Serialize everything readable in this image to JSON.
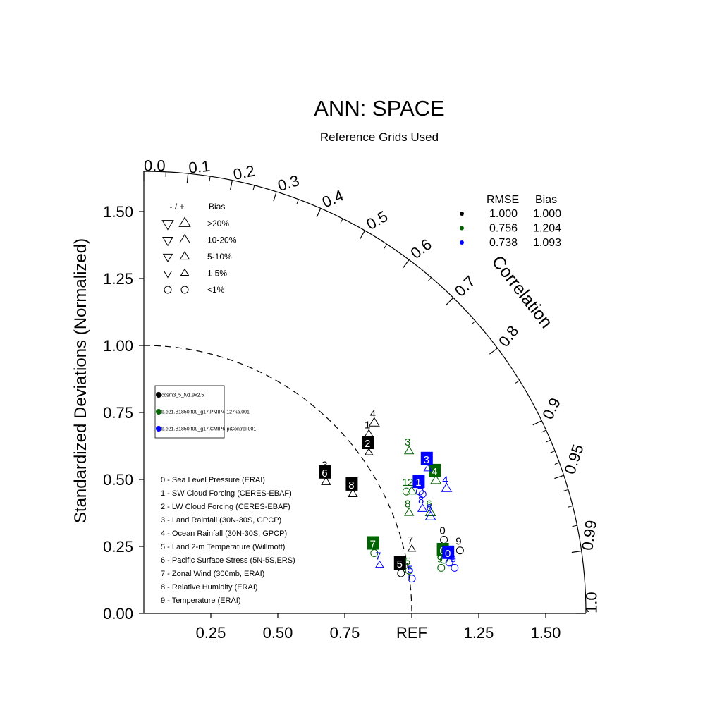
{
  "chart_data": {
    "type": "scatter",
    "subtype": "taylor-diagram",
    "title": "ANN: SPACE",
    "subtitle": "Reference Grids Used",
    "ylabel": "Standardized Deviations (Normalized)",
    "arc_label": "Correlation",
    "ref_label": "REF",
    "std_max": 1.65,
    "std_ref": 1.0,
    "y_ticks": [
      "0.00",
      "0.25",
      "0.50",
      "0.75",
      "1.00",
      "1.25",
      "1.50"
    ],
    "y_tick_values": [
      0,
      0.25,
      0.5,
      0.75,
      1.0,
      1.25,
      1.5
    ],
    "x_ticks": [
      "0.25",
      "0.50",
      "0.75",
      "1.25",
      "1.50"
    ],
    "x_tick_values": [
      0.25,
      0.5,
      0.75,
      1.25,
      1.5
    ],
    "corr_labels": [
      "0.0",
      "0.1",
      "0.2",
      "0.3",
      "0.4",
      "0.5",
      "0.6",
      "0.7",
      "0.8",
      "0.9",
      "0.95",
      "0.99",
      "1.0"
    ],
    "corr_values": [
      0.0,
      0.1,
      0.2,
      0.3,
      0.4,
      0.5,
      0.6,
      0.7,
      0.8,
      0.9,
      0.95,
      0.99,
      1.0
    ],
    "bias_legend": {
      "header_sign": "- / +",
      "header_bias": "Bias",
      "rows": [
        {
          "label": ">20%",
          "size": 1.0
        },
        {
          "label": "10-20%",
          "size": 0.85
        },
        {
          "label": "5-10%",
          "size": 0.7
        },
        {
          "label": "1-5%",
          "size": 0.5
        },
        {
          "label": "<1%",
          "size": 0.0
        }
      ]
    },
    "stats": {
      "header_rmse": "RMSE",
      "header_bias": "Bias",
      "rows": [
        {
          "color": "#000000",
          "rmse": "1.000",
          "bias": "1.000"
        },
        {
          "color": "#006400",
          "rmse": "0.756",
          "bias": "1.204"
        },
        {
          "color": "#0000ff",
          "rmse": "0.738",
          "bias": "1.093"
        }
      ]
    },
    "cases": [
      {
        "name": "ccsm3_5_fv1.9x2.5",
        "color": "#000000"
      },
      {
        "name": "b.e21.B1850.f09_g17.PMIP4-127ka.001",
        "color": "#006400"
      },
      {
        "name": "b.e21.B1850.f09_g17.CMIP6-piControl.001",
        "color": "#0000ff"
      }
    ],
    "variables": [
      "0 - Sea Level Pressure (ERAI)",
      "1 - SW Cloud Forcing (CERES-EBAF)",
      "2 - LW Cloud Forcing (CERES-EBAF)",
      "3 - Land Rainfall (30N-30S, GPCP)",
      "4 - Ocean Rainfall (30N-30S, GPCP)",
      "5 - Land 2-m Temperature (Willmott)",
      "6 - Pacific Surface Stress (5N-5S,ERS)",
      "7 - Zonal Wind (300mb, ERAI)",
      "8 - Relative Humidity (ERAI)",
      "9 - Temperature (ERAI)"
    ],
    "points": [
      {
        "case": 0,
        "label": "0",
        "x": 1.12,
        "y": 0.275,
        "marker": "circle",
        "size": 0.0,
        "boxed": false
      },
      {
        "case": 0,
        "label": "1",
        "x": 0.84,
        "y": 0.67,
        "marker": "up",
        "size": 0.5,
        "boxed": false
      },
      {
        "case": 0,
        "label": "2",
        "x": 0.84,
        "y": 0.6,
        "marker": "up",
        "size": 0.5,
        "boxed": true
      },
      {
        "case": 0,
        "label": "3",
        "x": 0.68,
        "y": 0.52,
        "marker": "up",
        "size": 0.5,
        "boxed": false
      },
      {
        "case": 0,
        "label": "4",
        "x": 0.86,
        "y": 0.71,
        "marker": "up",
        "size": 0.85,
        "boxed": false
      },
      {
        "case": 0,
        "label": "5",
        "x": 0.96,
        "y": 0.15,
        "marker": "circle",
        "size": 0.0,
        "boxed": true
      },
      {
        "case": 0,
        "label": "6",
        "x": 0.68,
        "y": 0.49,
        "marker": "up",
        "size": 0.7,
        "boxed": true
      },
      {
        "case": 0,
        "label": "7",
        "x": 1.0,
        "y": 0.24,
        "marker": "up",
        "size": 0.5,
        "boxed": false
      },
      {
        "case": 0,
        "label": "8",
        "x": 0.78,
        "y": 0.445,
        "marker": "up",
        "size": 0.7,
        "boxed": true
      },
      {
        "case": 0,
        "label": "9",
        "x": 1.18,
        "y": 0.235,
        "marker": "circle",
        "size": 0.0,
        "boxed": false
      },
      {
        "case": 1,
        "label": "0",
        "x": 1.12,
        "y": 0.2,
        "marker": "circle",
        "size": 0.0,
        "boxed": true
      },
      {
        "case": 1,
        "label": "1",
        "x": 0.98,
        "y": 0.455,
        "marker": "circle",
        "size": 0.0,
        "boxed": false
      },
      {
        "case": 1,
        "label": "2",
        "x": 1.0,
        "y": 0.455,
        "marker": "up",
        "size": 0.7,
        "boxed": false
      },
      {
        "case": 1,
        "label": "3",
        "x": 0.99,
        "y": 0.605,
        "marker": "up",
        "size": 0.7,
        "boxed": false
      },
      {
        "case": 1,
        "label": "4",
        "x": 1.09,
        "y": 0.495,
        "marker": "up",
        "size": 0.85,
        "boxed": true
      },
      {
        "case": 1,
        "label": "5",
        "x": 0.99,
        "y": 0.16,
        "marker": "circle",
        "size": 0.0,
        "boxed": false
      },
      {
        "case": 1,
        "label": "6",
        "x": 1.07,
        "y": 0.375,
        "marker": "up",
        "size": 0.85,
        "boxed": false
      },
      {
        "case": 1,
        "label": "7",
        "x": 0.86,
        "y": 0.225,
        "marker": "circle",
        "size": 0.0,
        "boxed": true
      },
      {
        "case": 1,
        "label": "8",
        "x": 0.99,
        "y": 0.375,
        "marker": "up",
        "size": 0.7,
        "boxed": false
      },
      {
        "case": 1,
        "label": "9",
        "x": 1.11,
        "y": 0.17,
        "marker": "circle",
        "size": 0.0,
        "boxed": false
      },
      {
        "case": 2,
        "label": "0",
        "x": 1.14,
        "y": 0.19,
        "marker": "circle",
        "size": 0.0,
        "boxed": true
      },
      {
        "case": 2,
        "label": "1",
        "x": 1.03,
        "y": 0.455,
        "marker": "circle",
        "size": 0.0,
        "boxed": true
      },
      {
        "case": 2,
        "label": "2",
        "x": 1.04,
        "y": 0.445,
        "marker": "circle",
        "size": 0.0,
        "boxed": false
      },
      {
        "case": 2,
        "label": "3",
        "x": 1.06,
        "y": 0.54,
        "marker": "up",
        "size": 0.5,
        "boxed": true
      },
      {
        "case": 2,
        "label": "4",
        "x": 1.13,
        "y": 0.465,
        "marker": "up",
        "size": 0.85,
        "boxed": false
      },
      {
        "case": 2,
        "label": "5",
        "x": 1.0,
        "y": 0.13,
        "marker": "circle",
        "size": 0.0,
        "boxed": false
      },
      {
        "case": 2,
        "label": "6",
        "x": 1.07,
        "y": 0.36,
        "marker": "up",
        "size": 0.85,
        "boxed": false
      },
      {
        "case": 2,
        "label": "7",
        "x": 0.88,
        "y": 0.18,
        "marker": "up",
        "size": 0.5,
        "boxed": false
      },
      {
        "case": 2,
        "label": "8",
        "x": 1.04,
        "y": 0.39,
        "marker": "up",
        "size": 0.7,
        "boxed": false
      },
      {
        "case": 2,
        "label": "9",
        "x": 1.16,
        "y": 0.17,
        "marker": "circle",
        "size": 0.0,
        "boxed": false
      }
    ]
  }
}
